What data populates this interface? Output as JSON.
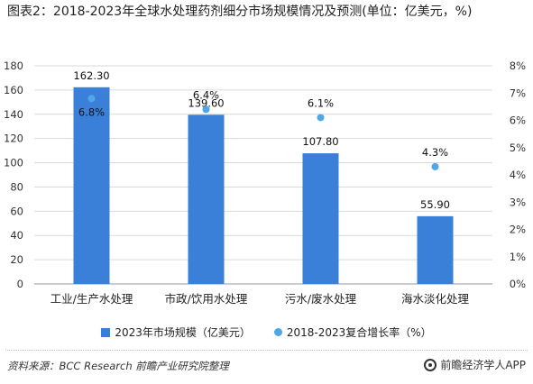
{
  "title": "图表2：2018-2023年全球水处理药剂细分市场规模情况及预测(单位：亿美元，%)",
  "source": "资料来源：BCC Research 前瞻产业研究院整理",
  "brand": "前瞻经济学人APP",
  "colors": {
    "bar": "#3a80d9",
    "dot": "#4ea7e6",
    "grid": "#d9d9d9"
  },
  "chart_data": {
    "type": "bar",
    "categories": [
      "工业/生产水处理",
      "市政/饮用水处理",
      "污水/废水处理",
      "海水淡化处理"
    ],
    "series": [
      {
        "name": "2023年市场规模（亿美元）",
        "type": "bar",
        "axis": "left",
        "values": [
          162.3,
          139.6,
          107.8,
          55.9
        ],
        "labels": [
          "162.30",
          "139.60",
          "107.80",
          "55.90"
        ]
      },
      {
        "name": "2018-2023复合增长率（%）",
        "type": "scatter",
        "axis": "right",
        "values": [
          6.8,
          6.4,
          6.1,
          4.3
        ],
        "labels": [
          "6.8%",
          "6.4%",
          "6.1%",
          "4.3%"
        ]
      }
    ],
    "y_left": {
      "min": 0,
      "max": 180,
      "ticks": [
        0,
        20,
        40,
        60,
        80,
        100,
        120,
        140,
        160,
        180
      ]
    },
    "y_right": {
      "min": 0,
      "max": 8,
      "ticks": [
        "0%",
        "1%",
        "2%",
        "3%",
        "4%",
        "5%",
        "6%",
        "7%",
        "8%"
      ]
    },
    "grid": true,
    "legend": "bottom"
  }
}
